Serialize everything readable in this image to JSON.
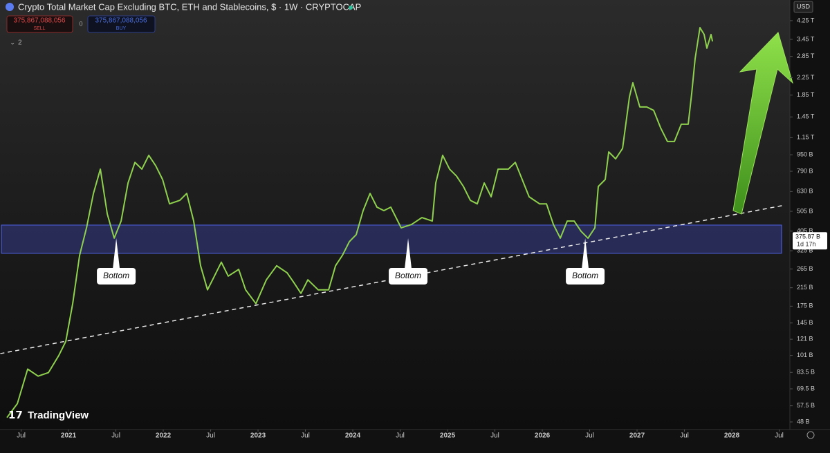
{
  "chart_data": {
    "type": "line",
    "title": "Crypto Total Market Cap Excluding BTC, ETH and Stablecoins, $ · 1W · CRYPTOCAP",
    "color": "#8fd14f",
    "y_scale": "log",
    "grid": false,
    "xlim": [
      2020.277,
      2028.613
    ],
    "xticks": [
      {
        "value": 2020.5,
        "label": "Jul"
      },
      2021,
      {
        "value": 2021.5,
        "label": "Jul"
      },
      2022,
      {
        "value": 2022.5,
        "label": "Jul"
      },
      2023,
      {
        "value": 2023.5,
        "label": "Jul"
      },
      2024,
      {
        "value": 2024.5,
        "label": "Jul"
      },
      2025,
      {
        "value": 2025.5,
        "label": "Jul"
      },
      2026,
      {
        "value": 2026.5,
        "label": "Jul"
      },
      2027,
      {
        "value": 2027.5,
        "label": "Jul"
      },
      2028,
      {
        "value": 2028.5,
        "label": "Jul"
      }
    ],
    "ylim": [
      44.1,
      5355
    ],
    "yticks": [
      {
        "value": 4250,
        "label": "4.25 T"
      },
      {
        "value": 3450,
        "label": "3.45 T"
      },
      {
        "value": 2850,
        "label": "2.85 T"
      },
      {
        "value": 2250,
        "label": "2.25 T"
      },
      {
        "value": 1850,
        "label": "1.85 T"
      },
      {
        "value": 1450,
        "label": "1.45 T"
      },
      {
        "value": 1150,
        "label": "1.15 T"
      },
      {
        "value": 950,
        "label": "950 B"
      },
      {
        "value": 790,
        "label": "790 B"
      },
      {
        "value": 630,
        "label": "630 B"
      },
      {
        "value": 505,
        "label": "505 B"
      },
      {
        "value": 405,
        "label": "405 B"
      },
      {
        "value": 325,
        "label": "325 B"
      },
      {
        "value": 265,
        "label": "265 B"
      },
      {
        "value": 215,
        "label": "215 B"
      },
      {
        "value": 175,
        "label": "175 B"
      },
      {
        "value": 145,
        "label": "145 B"
      },
      {
        "value": 121,
        "label": "121 B"
      },
      {
        "value": 101,
        "label": "101 B"
      },
      {
        "value": 83.5,
        "label": "83.5 B"
      },
      {
        "value": 69.5,
        "label": "69.5 B"
      },
      {
        "value": 57.5,
        "label": "57.5 B"
      },
      {
        "value": 48,
        "label": "48 B"
      }
    ],
    "x": [
      2020.35,
      2020.46,
      2020.569,
      2020.679,
      2020.788,
      2020.898,
      2020.971,
      2021.044,
      2021.117,
      2021.19,
      2021.263,
      2021.336,
      2021.409,
      2021.482,
      2021.555,
      2021.628,
      2021.701,
      2021.774,
      2021.847,
      2021.92,
      2021.993,
      2022.066,
      2022.175,
      2022.248,
      2022.321,
      2022.394,
      2022.467,
      2022.54,
      2022.613,
      2022.686,
      2022.796,
      2022.869,
      2022.978,
      2023.088,
      2023.197,
      2023.307,
      2023.38,
      2023.453,
      2023.526,
      2023.635,
      2023.745,
      2023.818,
      2023.891,
      2023.964,
      2024.036,
      2024.109,
      2024.182,
      2024.255,
      2024.328,
      2024.401,
      2024.511,
      2024.62,
      2024.73,
      2024.839,
      2024.876,
      2024.949,
      2025.022,
      2025.095,
      2025.168,
      2025.241,
      2025.314,
      2025.387,
      2025.46,
      2025.533,
      2025.642,
      2025.715,
      2025.788,
      2025.861,
      2025.971,
      2026.044,
      2026.117,
      2026.19,
      2026.263,
      2026.336,
      2026.409,
      2026.482,
      2026.555,
      2026.591,
      2026.664,
      2026.701,
      2026.774,
      2026.847,
      2026.92,
      2026.956,
      2027.029,
      2027.102,
      2027.175,
      2027.248,
      2027.321,
      2027.394,
      2027.467,
      2027.54,
      2027.577,
      2027.613,
      2027.664,
      2027.708,
      2027.737,
      2027.781,
      2027.796
    ],
    "values": [
      50.4,
      58.9,
      86.6,
      80.1,
      83.3,
      101,
      118,
      180,
      309,
      420,
      617,
      809,
      490,
      374,
      453,
      693,
      873,
      809,
      944,
      841,
      720,
      549,
      571,
      617,
      453,
      275,
      210,
      245,
      286,
      245,
      264,
      210,
      180,
      235,
      275,
      254,
      227,
      202,
      235,
      210,
      210,
      275,
      309,
      360,
      389,
      509,
      617,
      529,
      509,
      529,
      420,
      436,
      471,
      453,
      693,
      944,
      809,
      749,
      667,
      571,
      549,
      693,
      594,
      809,
      809,
      873,
      720,
      594,
      549,
      549,
      436,
      374,
      453,
      453,
      404,
      374,
      420,
      667,
      720,
      981,
      908,
      1020,
      1820,
      2123,
      1621,
      1621,
      1560,
      1286,
      1102,
      1102,
      1336,
      1336,
      1891,
      2781,
      3934,
      3643,
      3124,
      3643,
      3373
    ],
    "support_zone": [
      316,
      433
    ],
    "trendline": {
      "x": [
        2020.28,
        2028.53
      ],
      "values": [
        103,
        538
      ]
    },
    "annotations": [
      {
        "text": "Bottom",
        "x": 2021.504,
        "value": 374
      },
      {
        "text": "Bottom",
        "x": 2024.584,
        "value": 374
      },
      {
        "text": "Bottom",
        "x": 2026.453,
        "value": 374
      }
    ],
    "last_price": {
      "value": 375.87,
      "label": "375.87 B"
    },
    "countdown": "1d 17h"
  },
  "header": {
    "sell_price": "375,867,088,056",
    "sell": "SELL",
    "spread": "0",
    "buy_price": "375,867,088,056",
    "buy": "BUY",
    "indicators": "2"
  },
  "currency": "USD",
  "watermark": "TradingView"
}
